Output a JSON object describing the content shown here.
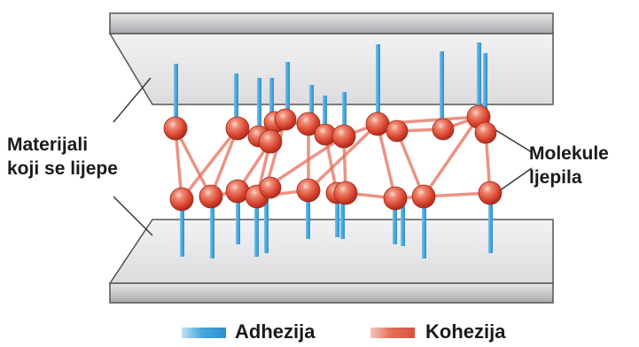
{
  "labels": {
    "materials_line1": "Materijali",
    "materials_line2": "koji se lijepe",
    "molecules_line1": "Molekule",
    "molecules_line2": "ljepila"
  },
  "legend": {
    "adhesion": "Adhezija",
    "cohesion": "Kohezija"
  },
  "colors": {
    "adhesion": "#4aa7dc",
    "cohesion": "#e46f5a",
    "molecule": "#d9432f",
    "plate_face": "#e3e3e6",
    "plate_edge": "#bcbcbf"
  }
}
